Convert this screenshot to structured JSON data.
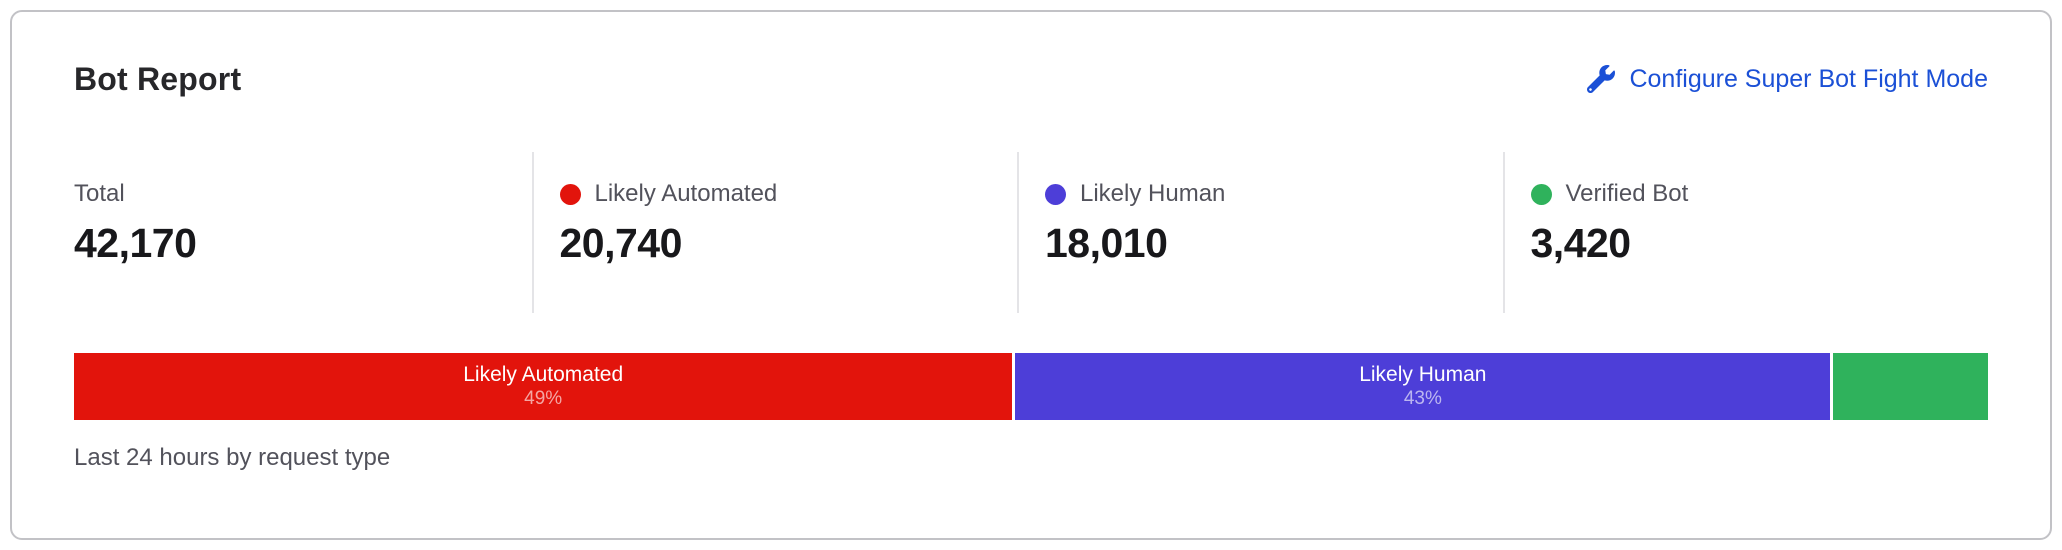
{
  "card": {
    "title": "Bot Report",
    "configure_link": "Configure Super Bot Fight Mode",
    "footer_caption": "Last 24 hours by request type"
  },
  "stats": [
    {
      "label": "Total",
      "value": "42,170",
      "dot_color": ""
    },
    {
      "label": "Likely Automated",
      "value": "20,740",
      "dot_color": "#e2140c"
    },
    {
      "label": "Likely Human",
      "value": "18,010",
      "dot_color": "#4d3ed8"
    },
    {
      "label": "Verified Bot",
      "value": "3,420",
      "dot_color": "#2fb25c"
    }
  ],
  "chart_data": {
    "type": "bar",
    "variant": "horizontal-stacked",
    "title": "Bot Report",
    "caption": "Last 24 hours by request type",
    "total": 42170,
    "segments": [
      {
        "name": "Likely Automated",
        "value": 20740,
        "percent_label": "49%",
        "color": "#e2140c",
        "label_visible": true
      },
      {
        "name": "Likely Human",
        "value": 18010,
        "percent_label": "43%",
        "color": "#4d3ed8",
        "label_visible": true
      },
      {
        "name": "Verified Bot",
        "value": 3420,
        "percent_label": "",
        "color": "#2fb25c",
        "label_visible": false
      }
    ],
    "legend_position": "stats-row-above-bar"
  },
  "colors": {
    "link": "#1b50d6",
    "card_border": "#c2c2c6",
    "divider": "#e4e4e7",
    "title_text": "#27272a",
    "value_text": "#18181b",
    "label_text": "#52525b",
    "likely_automated": "#e2140c",
    "likely_human": "#4d3ed8",
    "verified_bot": "#2fb25c"
  }
}
